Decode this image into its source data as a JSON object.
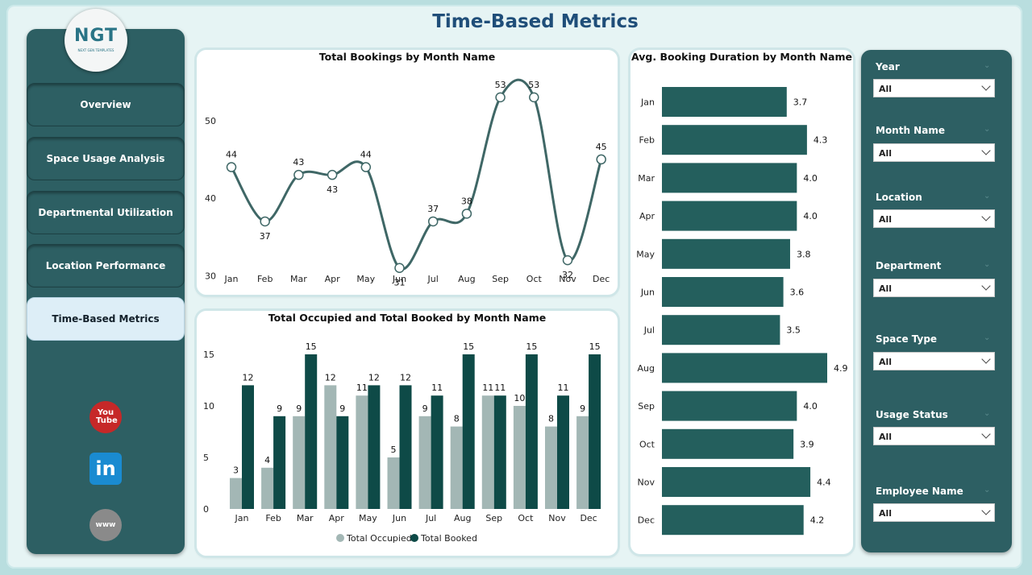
{
  "page": {
    "title": "Time-Based Metrics"
  },
  "logo": {
    "text": "NGT",
    "subtitle": "NEXT GEN TEMPLATES"
  },
  "nav": [
    {
      "label": "Overview"
    },
    {
      "label": "Space Usage Analysis"
    },
    {
      "label": "Departmental Utilization"
    },
    {
      "label": "Location Performance"
    },
    {
      "label": "Time-Based Metrics"
    }
  ],
  "social": {
    "youtube": "You Tube",
    "linkedin": "in",
    "website": "www"
  },
  "colors": {
    "sidebar": "#2d5f63",
    "dark_bar": "#0e4a47",
    "light_bar": "#a3b7b5",
    "title": "#1f4e79",
    "hbar": "#245f5d"
  },
  "filters": [
    {
      "label": "Year",
      "value": "All"
    },
    {
      "label": "Month Name",
      "value": "All"
    },
    {
      "label": "Location",
      "value": "All"
    },
    {
      "label": "Department",
      "value": "All"
    },
    {
      "label": "Space Type",
      "value": "All"
    },
    {
      "label": "Usage Status",
      "value": "All"
    },
    {
      "label": "Employee Name",
      "value": "All"
    }
  ],
  "chart_data": [
    {
      "type": "line",
      "title": "Total Bookings by Month Name",
      "categories": [
        "Jan",
        "Feb",
        "Mar",
        "Apr",
        "May",
        "Jun",
        "Jul",
        "Aug",
        "Sep",
        "Oct",
        "Nov",
        "Dec"
      ],
      "values": [
        44,
        37,
        43,
        43,
        44,
        31,
        37,
        38,
        53,
        53,
        32,
        45
      ],
      "yticks": [
        30,
        40,
        50
      ],
      "ylim": [
        29,
        56
      ]
    },
    {
      "type": "bar",
      "title": "Total Occupied and Total Booked by Month Name",
      "categories": [
        "Jan",
        "Feb",
        "Mar",
        "Apr",
        "May",
        "Jun",
        "Jul",
        "Aug",
        "Sep",
        "Oct",
        "Nov",
        "Dec"
      ],
      "series": [
        {
          "name": "Total Occupied",
          "values": [
            3,
            4,
            9,
            12,
            11,
            5,
            9,
            8,
            11,
            10,
            8,
            9
          ]
        },
        {
          "name": "Total Booked",
          "values": [
            12,
            9,
            15,
            9,
            12,
            12,
            11,
            15,
            11,
            15,
            11,
            15
          ]
        }
      ],
      "yticks": [
        0,
        5,
        10,
        15
      ],
      "ylim": [
        0,
        15
      ],
      "legend": "bottom-center"
    },
    {
      "type": "bar",
      "orientation": "horizontal",
      "title": "Avg. Booking Duration by Month Name",
      "categories": [
        "Jan",
        "Feb",
        "Mar",
        "Apr",
        "May",
        "Jun",
        "Jul",
        "Aug",
        "Sep",
        "Oct",
        "Nov",
        "Dec"
      ],
      "values_label": [
        "3.7",
        "4.3",
        "4.0",
        "4.0",
        "3.8",
        "3.6",
        "3.5",
        "4.9",
        "4.0",
        "3.9",
        "4.4",
        "4.2"
      ],
      "values": [
        3.7,
        4.3,
        4.0,
        4.0,
        3.8,
        3.6,
        3.5,
        4.9,
        4.0,
        3.9,
        4.4,
        4.2
      ],
      "xlim": [
        0,
        4.9
      ]
    }
  ]
}
